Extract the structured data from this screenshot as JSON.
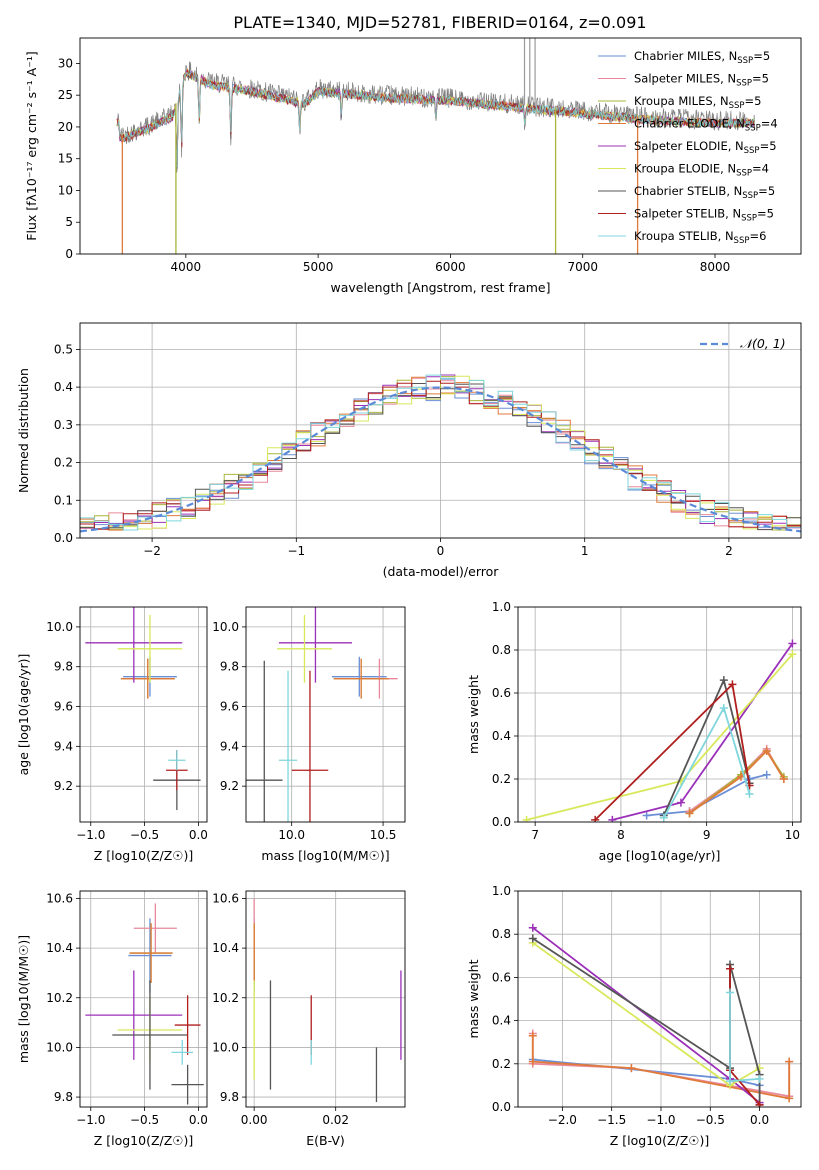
{
  "figure": {
    "title": "PLATE=1340, MJD=52781, FIBERID=0164, z=0.091"
  },
  "models": [
    {
      "name": "Chabrier MILES",
      "n_ssp": "5",
      "color": "#6a8fd6"
    },
    {
      "name": "Salpeter MILES",
      "n_ssp": "5",
      "color": "#e8889a"
    },
    {
      "name": "Kroupa MILES",
      "n_ssp": "5",
      "color": "#aab53a"
    },
    {
      "name": "Chabrier ELODIE",
      "n_ssp": "4",
      "color": "#e07a3a"
    },
    {
      "name": "Salpeter ELODIE",
      "n_ssp": "5",
      "color": "#9b30b8"
    },
    {
      "name": "Kroupa ELODIE",
      "n_ssp": "4",
      "color": "#d8e85a"
    },
    {
      "name": "Chabrier STELIB",
      "n_ssp": "5",
      "color": "#555555"
    },
    {
      "name": "Salpeter STELIB",
      "n_ssp": "5",
      "color": "#b01e1e"
    },
    {
      "name": "Kroupa STELIB",
      "n_ssp": "6",
      "color": "#7fd6dc"
    }
  ],
  "legend_suffix": {
    "prefix": "N",
    "sub": "SSP"
  },
  "chart_data": [
    {
      "id": "spectrum",
      "type": "line",
      "xlabel": "wavelength [Angstrom, rest frame]",
      "ylabel": "Flux [fλ10⁻¹⁷ erg cm⁻² s⁻¹ A⁻¹]",
      "xlim": [
        3200,
        8650
      ],
      "ylim": [
        0,
        34
      ],
      "xticks": [
        4000,
        5000,
        6000,
        7000,
        8000
      ],
      "yticks": [
        0,
        5,
        10,
        15,
        20,
        25,
        30
      ],
      "legend_position": "upper right",
      "grid": false,
      "data_envelope": [
        {
          "x": 3500,
          "y": 18.5
        },
        {
          "x": 3700,
          "y": 20
        },
        {
          "x": 3900,
          "y": 22
        },
        {
          "x": 4000,
          "y": 29
        },
        {
          "x": 4200,
          "y": 27
        },
        {
          "x": 4500,
          "y": 26
        },
        {
          "x": 4900,
          "y": 24
        },
        {
          "x": 5000,
          "y": 26
        },
        {
          "x": 5500,
          "y": 25
        },
        {
          "x": 6000,
          "y": 24.5
        },
        {
          "x": 6500,
          "y": 23.5
        },
        {
          "x": 7000,
          "y": 22.5
        },
        {
          "x": 7500,
          "y": 21.5
        },
        {
          "x": 8000,
          "y": 21
        },
        {
          "x": 8300,
          "y": 21
        }
      ]
    },
    {
      "id": "residuals",
      "type": "line",
      "xlabel": "(data-model)/error",
      "ylabel": "Normed distribution",
      "xlim": [
        -2.5,
        2.5
      ],
      "ylim": [
        0,
        0.57
      ],
      "xticks": [
        -2,
        -1,
        0,
        1,
        2
      ],
      "yticks": [
        0.0,
        0.1,
        0.2,
        0.3,
        0.4,
        0.5
      ],
      "legend": "𝒩(0, 1)",
      "legend_position": "upper right",
      "grid": true,
      "gaussian": {
        "mean": 0,
        "sigma": 1
      }
    },
    {
      "id": "age_z",
      "type": "scatter",
      "xlabel": "Z [log10(Z/Z☉)]",
      "ylabel": "age  [log10(age/yr)]",
      "xlim": [
        -1.1,
        0.08
      ],
      "ylim": [
        9.02,
        10.1
      ],
      "xticks": [
        -1.0,
        -0.5,
        0.0
      ],
      "yticks": [
        9.2,
        9.4,
        9.6,
        9.8,
        10.0
      ],
      "grid": true,
      "points": [
        {
          "model": 0,
          "x": -0.45,
          "xerr": 0.25,
          "y": 9.75,
          "yerr": 0.1
        },
        {
          "model": 1,
          "x": -0.47,
          "xerr": 0.25,
          "y": 9.74,
          "yerr": 0.1
        },
        {
          "model": 2,
          "x": -0.47,
          "xerr": 0.25,
          "y": 9.74,
          "yerr": 0.1
        },
        {
          "model": 3,
          "x": -0.47,
          "xerr": 0.25,
          "y": 9.74,
          "yerr": 0.1
        },
        {
          "model": 4,
          "x": -0.6,
          "xerr": 0.45,
          "y": 9.92,
          "yerr": 0.2
        },
        {
          "model": 5,
          "x": -0.45,
          "xerr": 0.3,
          "y": 9.89,
          "yerr": 0.17
        },
        {
          "model": 6,
          "x": -0.2,
          "xerr": 0.22,
          "y": 9.23,
          "yerr": 0.15
        },
        {
          "model": 7,
          "x": -0.2,
          "xerr": 0.1,
          "y": 9.28,
          "yerr": 0.1
        },
        {
          "model": 8,
          "x": -0.2,
          "xerr": 0.08,
          "y": 9.33,
          "yerr": 0.05
        }
      ]
    },
    {
      "id": "age_mass",
      "type": "scatter",
      "xlabel": "mass [log10(M/M☉)]",
      "ylabel": "",
      "xlim": [
        9.75,
        10.62
      ],
      "ylim": [
        9.02,
        10.1
      ],
      "xticks": [
        10.0,
        10.5
      ],
      "yticks": [
        9.2,
        9.4,
        9.6,
        9.8,
        10.0
      ],
      "grid": true,
      "points": [
        {
          "model": 0,
          "x": 10.37,
          "xerr": 0.15,
          "y": 9.75,
          "yerr": 0.1
        },
        {
          "model": 1,
          "x": 10.48,
          "xerr": 0.1,
          "y": 9.74,
          "yerr": 0.1
        },
        {
          "model": 2,
          "x": 10.38,
          "xerr": 0.15,
          "y": 9.74,
          "yerr": 0.1
        },
        {
          "model": 3,
          "x": 10.38,
          "xerr": 0.15,
          "y": 9.74,
          "yerr": 0.1
        },
        {
          "model": 4,
          "x": 10.13,
          "xerr": 0.2,
          "y": 9.92,
          "yerr": 0.2
        },
        {
          "model": 5,
          "x": 10.07,
          "xerr": 0.15,
          "y": 9.89,
          "yerr": 0.17
        },
        {
          "model": 6,
          "x": 9.85,
          "xerr": 0.1,
          "y": 9.23,
          "yerr": 0.6
        },
        {
          "model": 7,
          "x": 10.1,
          "xerr": 0.1,
          "y": 9.28,
          "yerr": 0.5
        },
        {
          "model": 8,
          "x": 9.98,
          "xerr": 0.05,
          "y": 9.33,
          "yerr": 0.45
        }
      ]
    },
    {
      "id": "mw_age",
      "type": "line",
      "xlabel": "age  [log10(age/yr)]",
      "ylabel": "mass weight",
      "xlim": [
        6.8,
        10.1
      ],
      "ylim": [
        0,
        1
      ],
      "xticks": [
        7,
        8,
        9,
        10
      ],
      "yticks": [
        0.0,
        0.2,
        0.4,
        0.6,
        0.8,
        1.0
      ],
      "grid": true,
      "series": [
        {
          "model": 0,
          "x": [
            8.3,
            8.8,
            9.5,
            9.7
          ],
          "y": [
            0.03,
            0.05,
            0.2,
            0.22
          ]
        },
        {
          "model": 1,
          "x": [
            8.8,
            9.4,
            9.7,
            9.9
          ],
          "y": [
            0.05,
            0.22,
            0.34,
            0.2
          ]
        },
        {
          "model": 2,
          "x": [
            8.8,
            9.4,
            9.7,
            9.9
          ],
          "y": [
            0.04,
            0.22,
            0.33,
            0.21
          ]
        },
        {
          "model": 3,
          "x": [
            8.8,
            9.4,
            9.7,
            9.9
          ],
          "y": [
            0.04,
            0.21,
            0.33,
            0.2
          ]
        },
        {
          "model": 4,
          "x": [
            7.9,
            8.7,
            10.0
          ],
          "y": [
            0.01,
            0.09,
            0.83
          ]
        },
        {
          "model": 5,
          "x": [
            6.9,
            8.7,
            10.0
          ],
          "y": [
            0.01,
            0.19,
            0.78
          ]
        },
        {
          "model": 6,
          "x": [
            8.5,
            9.2,
            9.5
          ],
          "y": [
            0.03,
            0.66,
            0.18
          ]
        },
        {
          "model": 7,
          "x": [
            7.7,
            9.3,
            9.5
          ],
          "y": [
            0.01,
            0.64,
            0.17
          ]
        },
        {
          "model": 8,
          "x": [
            8.5,
            9.2,
            9.5
          ],
          "y": [
            0.02,
            0.53,
            0.13
          ]
        }
      ]
    },
    {
      "id": "mass_z",
      "type": "scatter",
      "xlabel": "Z [log10(Z/Z☉)]",
      "ylabel": "mass [log10(M/M☉)]",
      "xlim": [
        -1.1,
        0.08
      ],
      "ylim": [
        9.76,
        10.63
      ],
      "xticks": [
        -1.0,
        -0.5,
        0.0
      ],
      "yticks": [
        9.8,
        10.0,
        10.2,
        10.4,
        10.6
      ],
      "grid": true,
      "points": [
        {
          "model": 0,
          "x": -0.45,
          "xerr": 0.2,
          "y": 10.37,
          "yerr": 0.15
        },
        {
          "model": 1,
          "x": -0.4,
          "xerr": 0.2,
          "y": 10.48,
          "yerr": 0.1
        },
        {
          "model": 2,
          "x": -0.44,
          "xerr": 0.2,
          "y": 10.38,
          "yerr": 0.12
        },
        {
          "model": 3,
          "x": -0.44,
          "xerr": 0.2,
          "y": 10.38,
          "yerr": 0.12
        },
        {
          "model": 4,
          "x": -0.6,
          "xerr": 0.45,
          "y": 10.13,
          "yerr": 0.18
        },
        {
          "model": 5,
          "x": -0.45,
          "xerr": 0.3,
          "y": 10.07,
          "yerr": 0.13
        },
        {
          "model": 6,
          "x": -0.45,
          "xerr": 0.35,
          "y": 10.05,
          "yerr": 0.22
        },
        {
          "model": 7,
          "x": -0.1,
          "xerr": 0.12,
          "y": 10.09,
          "yerr": 0.12
        },
        {
          "model": 8,
          "x": -0.15,
          "xerr": 0.1,
          "y": 9.98,
          "yerr": 0.05
        }
      ],
      "extra_points": [
        {
          "model": 6,
          "x": -0.1,
          "xerr": 0.15,
          "y": 9.85,
          "yerr": 0.08
        }
      ]
    },
    {
      "id": "mass_ebv",
      "type": "scatter",
      "xlabel": "E(B-V)",
      "ylabel": "",
      "xlim": [
        -0.002,
        0.037
      ],
      "ylim": [
        9.76,
        10.63
      ],
      "xticks": [
        0.0,
        0.02
      ],
      "yticks": [
        9.8,
        10.0,
        10.2,
        10.4,
        10.6
      ],
      "grid": true,
      "points": [
        {
          "model": 0,
          "x": 0.0,
          "y": 10.37,
          "yerr": 0.15
        },
        {
          "model": 1,
          "x": 0.0,
          "y": 10.48,
          "yerr": 0.12
        },
        {
          "model": 2,
          "x": 0.0,
          "y": 10.38,
          "yerr": 0.12
        },
        {
          "model": 3,
          "x": 0.0,
          "y": 10.38,
          "yerr": 0.12
        },
        {
          "model": 4,
          "x": 0.036,
          "y": 10.13,
          "yerr": 0.18
        },
        {
          "model": 5,
          "x": 0.0,
          "y": 10.07,
          "yerr": 0.2
        },
        {
          "model": 6,
          "x": 0.004,
          "y": 10.05,
          "yerr": 0.22
        },
        {
          "model": 7,
          "x": 0.014,
          "y": 10.09,
          "yerr": 0.12
        },
        {
          "model": 8,
          "x": 0.014,
          "y": 9.98,
          "yerr": 0.05
        }
      ],
      "extra_points": [
        {
          "model": 6,
          "x": 0.03,
          "y": 9.89,
          "yerr": 0.11
        }
      ]
    },
    {
      "id": "mw_z",
      "type": "line",
      "xlabel": "Z [log10(Z/Z☉)]",
      "ylabel": "mass weight",
      "xlim": [
        -2.45,
        0.42
      ],
      "ylim": [
        0,
        1
      ],
      "xticks": [
        -2.0,
        -1.5,
        -1.0,
        -0.5,
        0.0
      ],
      "yticks": [
        0.0,
        0.2,
        0.4,
        0.6,
        0.8,
        1.0
      ],
      "grid": true,
      "series": [
        {
          "model": 0,
          "x": [
            -2.3,
            -0.3,
            0.0
          ],
          "y": [
            0.22,
            0.13,
            0.1
          ]
        },
        {
          "model": 1,
          "x": [
            -2.3,
            -2.3,
            -1.3,
            0.3,
            0.3
          ],
          "y": [
            0.34,
            0.2,
            0.18,
            0.05,
            0.21
          ]
        },
        {
          "model": 3,
          "x": [
            -2.3,
            -2.3,
            -1.3,
            0.3,
            0.3
          ],
          "y": [
            0.33,
            0.21,
            0.18,
            0.04,
            0.21
          ]
        },
        {
          "model": 4,
          "x": [
            -2.3,
            -0.3,
            0.0
          ],
          "y": [
            0.83,
            0.13,
            0.02
          ]
        },
        {
          "model": 5,
          "x": [
            -2.3,
            -0.3,
            0.0
          ],
          "y": [
            0.76,
            0.1,
            0.18
          ]
        },
        {
          "model": 6,
          "x": [
            -2.3,
            -0.3,
            -0.3,
            0.0,
            0.0
          ],
          "y": [
            0.78,
            0.18,
            0.66,
            0.15,
            0.01
          ]
        },
        {
          "model": 7,
          "x": [
            -0.3,
            -0.3,
            0.0
          ],
          "y": [
            0.64,
            0.17,
            0.01
          ]
        },
        {
          "model": 8,
          "x": [
            -0.3,
            -0.3,
            0.0
          ],
          "y": [
            0.53,
            0.12,
            0.13
          ]
        }
      ]
    }
  ]
}
